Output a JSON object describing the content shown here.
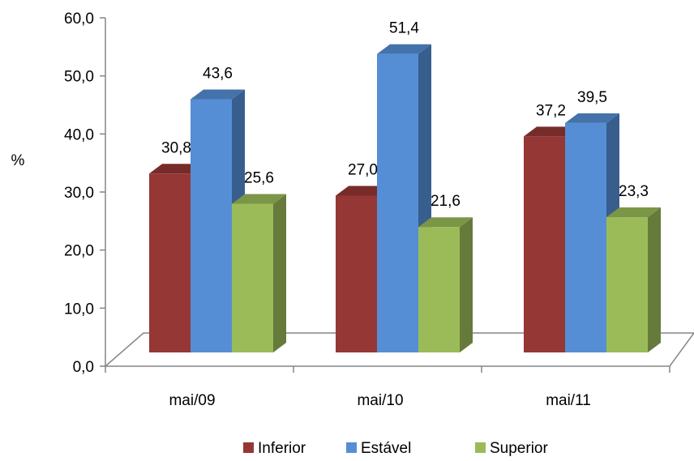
{
  "chart_data": {
    "type": "bar",
    "categories": [
      "mai/09",
      "mai/10",
      "mai/11"
    ],
    "series": [
      {
        "name": "Inferior",
        "values": [
          30.8,
          27.0,
          37.2
        ],
        "color": "#953735"
      },
      {
        "name": "Estável",
        "values": [
          43.6,
          51.4,
          39.5
        ],
        "color": "#558ED5"
      },
      {
        "name": "Superior",
        "values": [
          25.6,
          21.6,
          23.3
        ],
        "color": "#9BBB59"
      }
    ],
    "value_labels": [
      [
        "30,8",
        "27,0",
        "37,2"
      ],
      [
        "43,6",
        "51,4",
        "39,5"
      ],
      [
        "25,6",
        "21,6",
        "23,3"
      ]
    ],
    "ylabel": "%",
    "ylim": [
      0,
      60
    ],
    "yticks": [
      0,
      10,
      20,
      30,
      40,
      50,
      60
    ],
    "ytick_labels": [
      "0,0",
      "10,0",
      "20,0",
      "30,0",
      "40,0",
      "50,0",
      "60,0"
    ],
    "legend_position": "bottom",
    "grid": false
  }
}
